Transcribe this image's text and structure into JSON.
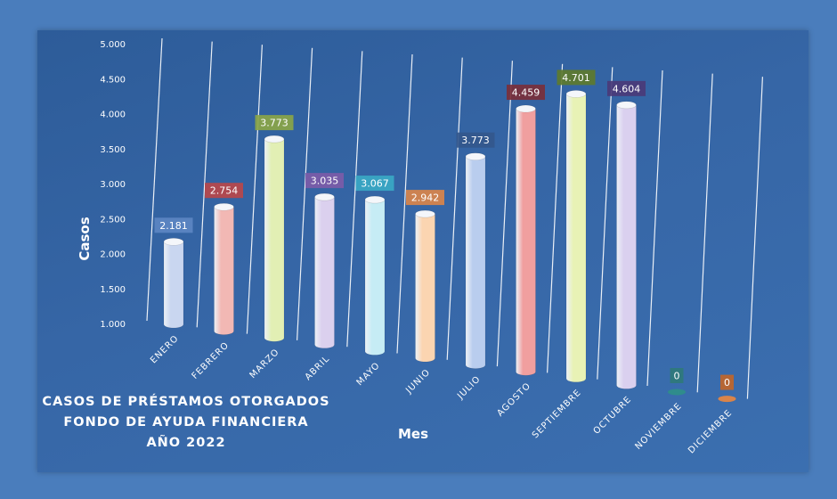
{
  "chart_data": {
    "type": "bar",
    "title_lines": [
      "CASOS DE PRÉSTAMOS OTORGADOS",
      "FONDO DE AYUDA FINANCIERA",
      "AÑO 2022"
    ],
    "xlabel": "Mes",
    "ylabel": "Casos",
    "ylim": [
      1000,
      5000
    ],
    "y_ticks": [
      "1.000",
      "1.500",
      "2.000",
      "2.500",
      "3.000",
      "3.500",
      "4.000",
      "4.500",
      "5.000"
    ],
    "categories": [
      "ENERO",
      "FEBRERO",
      "MARZO",
      "ABRIL",
      "MAYO",
      "JUNIO",
      "JULIO",
      "AGOSTO",
      "SEPTIEMBRE",
      "OCTUBRE",
      "NOVIEMBRE",
      "DICIEMBRE"
    ],
    "values": [
      2181,
      2754,
      3773,
      3035,
      3067,
      2942,
      3773,
      4459,
      4701,
      4604,
      0,
      0
    ],
    "value_labels": [
      "2.181",
      "2.754",
      "3.773",
      "3.035",
      "3.067",
      "2.942",
      "3.773",
      "4.459",
      "4.701",
      "4.604",
      "0",
      "0"
    ],
    "grid": true,
    "bar_colors": [
      "#c9d6f0",
      "#f2b8b4",
      "#e2efb4",
      "#dbd0ee",
      "#c6ecf5",
      "#fbd5b1",
      "#b9cdee",
      "#f09f9f",
      "#e8f2b5",
      "#dad0ef",
      "#2f8c8c",
      "#d9844a"
    ],
    "label_colors": [
      "#5c86c2",
      "#b8474a",
      "#8aa546",
      "#7c5ba8",
      "#3aa8c4",
      "#d9844a",
      "#33578c",
      "#7a2f3a",
      "#5d7a2e",
      "#4a3a78",
      "#2f7a7a",
      "#c0662a"
    ]
  }
}
